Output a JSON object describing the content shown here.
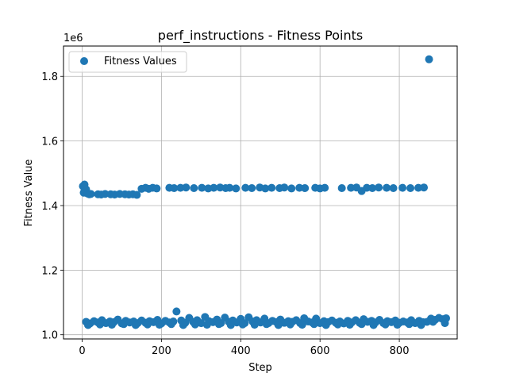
{
  "chart_data": {
    "type": "scatter",
    "title": "perf_instructions - Fitness Points",
    "xlabel": "Step",
    "ylabel": "Fitness Value",
    "y_offset_label": "1e6",
    "xlim": [
      -47,
      946
    ],
    "ylim": [
      987000,
      1894000
    ],
    "xticks": [
      0,
      200,
      400,
      600,
      800
    ],
    "yticks": [
      1000000,
      1200000,
      1400000,
      1600000,
      1800000
    ],
    "ytick_labels": [
      "1.0",
      "1.2",
      "1.4",
      "1.6",
      "1.8"
    ],
    "grid": true,
    "legend": {
      "position": "top-left",
      "entries": [
        "Fitness Values"
      ]
    },
    "colors": {
      "series": "#1f77b4"
    },
    "series": [
      {
        "name": "Fitness Values",
        "points": [
          [
            2,
            1460000
          ],
          [
            4,
            1440000
          ],
          [
            6,
            1465000
          ],
          [
            8,
            1445000
          ],
          [
            10,
            1450000
          ],
          [
            14,
            1437000
          ],
          [
            18,
            1435000
          ],
          [
            22,
            1436000
          ],
          [
            40,
            1435000
          ],
          [
            48,
            1434000
          ],
          [
            58,
            1436000
          ],
          [
            72,
            1435000
          ],
          [
            82,
            1434000
          ],
          [
            95,
            1436000
          ],
          [
            108,
            1435000
          ],
          [
            118,
            1434000
          ],
          [
            128,
            1435000
          ],
          [
            138,
            1433000
          ],
          [
            150,
            1452000
          ],
          [
            160,
            1455000
          ],
          [
            168,
            1452000
          ],
          [
            178,
            1455000
          ],
          [
            188,
            1453000
          ],
          [
            220,
            1455000
          ],
          [
            232,
            1454000
          ],
          [
            248,
            1455000
          ],
          [
            262,
            1456000
          ],
          [
            282,
            1454000
          ],
          [
            302,
            1455000
          ],
          [
            318,
            1453000
          ],
          [
            332,
            1455000
          ],
          [
            348,
            1456000
          ],
          [
            362,
            1454000
          ],
          [
            372,
            1455000
          ],
          [
            388,
            1453000
          ],
          [
            412,
            1455000
          ],
          [
            428,
            1454000
          ],
          [
            448,
            1456000
          ],
          [
            462,
            1453000
          ],
          [
            478,
            1455000
          ],
          [
            498,
            1454000
          ],
          [
            510,
            1456000
          ],
          [
            528,
            1453000
          ],
          [
            548,
            1455000
          ],
          [
            562,
            1454000
          ],
          [
            588,
            1455000
          ],
          [
            600,
            1453000
          ],
          [
            612,
            1455000
          ],
          [
            655,
            1454000
          ],
          [
            678,
            1455000
          ],
          [
            692,
            1456000
          ],
          [
            705,
            1445000
          ],
          [
            718,
            1455000
          ],
          [
            732,
            1454000
          ],
          [
            748,
            1456000
          ],
          [
            768,
            1455000
          ],
          [
            785,
            1454000
          ],
          [
            808,
            1455000
          ],
          [
            828,
            1454000
          ],
          [
            848,
            1455000
          ],
          [
            862,
            1456000
          ],
          [
            875,
            1853000
          ],
          [
            238,
            1072000
          ],
          [
            10,
            1040000
          ],
          [
            20,
            1035000
          ],
          [
            30,
            1042000
          ],
          [
            40,
            1038000
          ],
          [
            50,
            1045000
          ],
          [
            60,
            1036000
          ],
          [
            70,
            1041000
          ],
          [
            80,
            1039000
          ],
          [
            90,
            1047000
          ],
          [
            100,
            1035000
          ],
          [
            110,
            1043000
          ],
          [
            120,
            1038000
          ],
          [
            130,
            1041000
          ],
          [
            140,
            1036000
          ],
          [
            150,
            1044000
          ],
          [
            160,
            1037000
          ],
          [
            170,
            1042000
          ],
          [
            180,
            1039000
          ],
          [
            190,
            1046000
          ],
          [
            200,
            1035000
          ],
          [
            210,
            1043000
          ],
          [
            220,
            1038000
          ],
          [
            230,
            1041000
          ],
          [
            250,
            1044000
          ],
          [
            260,
            1037000
          ],
          [
            270,
            1052000
          ],
          [
            280,
            1040000
          ],
          [
            290,
            1045000
          ],
          [
            300,
            1036000
          ],
          [
            310,
            1055000
          ],
          [
            320,
            1042000
          ],
          [
            330,
            1039000
          ],
          [
            340,
            1047000
          ],
          [
            350,
            1036000
          ],
          [
            360,
            1053000
          ],
          [
            370,
            1040000
          ],
          [
            380,
            1044000
          ],
          [
            390,
            1038000
          ],
          [
            400,
            1049000
          ],
          [
            410,
            1036000
          ],
          [
            420,
            1054000
          ],
          [
            430,
            1041000
          ],
          [
            440,
            1045000
          ],
          [
            450,
            1038000
          ],
          [
            460,
            1050000
          ],
          [
            470,
            1036000
          ],
          [
            480,
            1043000
          ],
          [
            490,
            1039000
          ],
          [
            500,
            1047000
          ],
          [
            510,
            1037000
          ],
          [
            520,
            1042000
          ],
          [
            530,
            1040000
          ],
          [
            540,
            1045000
          ],
          [
            550,
            1036000
          ],
          [
            560,
            1051000
          ],
          [
            570,
            1041000
          ],
          [
            580,
            1038000
          ],
          [
            590,
            1050000
          ],
          [
            600,
            1036000
          ],
          [
            610,
            1042000
          ],
          [
            620,
            1039000
          ],
          [
            630,
            1044000
          ],
          [
            640,
            1037000
          ],
          [
            650,
            1041000
          ],
          [
            660,
            1035000
          ],
          [
            670,
            1043000
          ],
          [
            680,
            1038000
          ],
          [
            690,
            1045000
          ],
          [
            700,
            1037000
          ],
          [
            710,
            1048000
          ],
          [
            720,
            1040000
          ],
          [
            730,
            1043000
          ],
          [
            740,
            1038000
          ],
          [
            750,
            1046000
          ],
          [
            760,
            1036000
          ],
          [
            770,
            1042000
          ],
          [
            780,
            1039000
          ],
          [
            790,
            1044000
          ],
          [
            800,
            1037000
          ],
          [
            810,
            1041000
          ],
          [
            820,
            1038000
          ],
          [
            830,
            1045000
          ],
          [
            840,
            1036000
          ],
          [
            850,
            1043000
          ],
          [
            860,
            1039000
          ],
          [
            870,
            1040000
          ],
          [
            880,
            1050000
          ],
          [
            890,
            1046000
          ],
          [
            900,
            1052000
          ],
          [
            910,
            1048000
          ],
          [
            918,
            1051000
          ],
          [
            15,
            1030000
          ],
          [
            45,
            1032000
          ],
          [
            75,
            1031000
          ],
          [
            105,
            1033000
          ],
          [
            135,
            1030000
          ],
          [
            165,
            1032000
          ],
          [
            195,
            1031000
          ],
          [
            225,
            1033000
          ],
          [
            255,
            1030000
          ],
          [
            285,
            1032000
          ],
          [
            315,
            1031000
          ],
          [
            345,
            1033000
          ],
          [
            375,
            1030000
          ],
          [
            405,
            1032000
          ],
          [
            435,
            1031000
          ],
          [
            465,
            1033000
          ],
          [
            495,
            1030000
          ],
          [
            525,
            1032000
          ],
          [
            555,
            1031000
          ],
          [
            585,
            1033000
          ],
          [
            615,
            1030000
          ],
          [
            645,
            1032000
          ],
          [
            675,
            1031000
          ],
          [
            705,
            1033000
          ],
          [
            735,
            1030000
          ],
          [
            765,
            1032000
          ],
          [
            795,
            1031000
          ],
          [
            825,
            1033000
          ],
          [
            855,
            1030000
          ],
          [
            885,
            1040000
          ],
          [
            915,
            1036000
          ]
        ]
      }
    ]
  }
}
